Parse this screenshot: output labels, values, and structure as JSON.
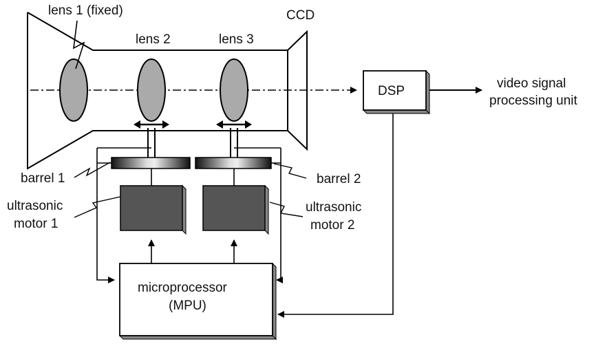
{
  "labels": {
    "lens1": "lens 1 (fixed)",
    "lens2": "lens 2",
    "lens3": "lens 3",
    "ccd": "CCD",
    "dsp": "DSP",
    "video_line1": "video signal",
    "video_line2": "processing unit",
    "barrel1": "barrel 1",
    "barrel2": "barrel 2",
    "motor1_line1": "ultrasonic",
    "motor1_line2": "motor 1",
    "motor2_line1": "ultrasonic",
    "motor2_line2": "motor 2",
    "mpu_line1": "microprocessor",
    "mpu_line2": "(MPU)"
  },
  "colors": {
    "lens_fill": "#aaaaaa",
    "motor_fill": "#555555",
    "line": "#000000",
    "box_shadow": "#888888"
  }
}
